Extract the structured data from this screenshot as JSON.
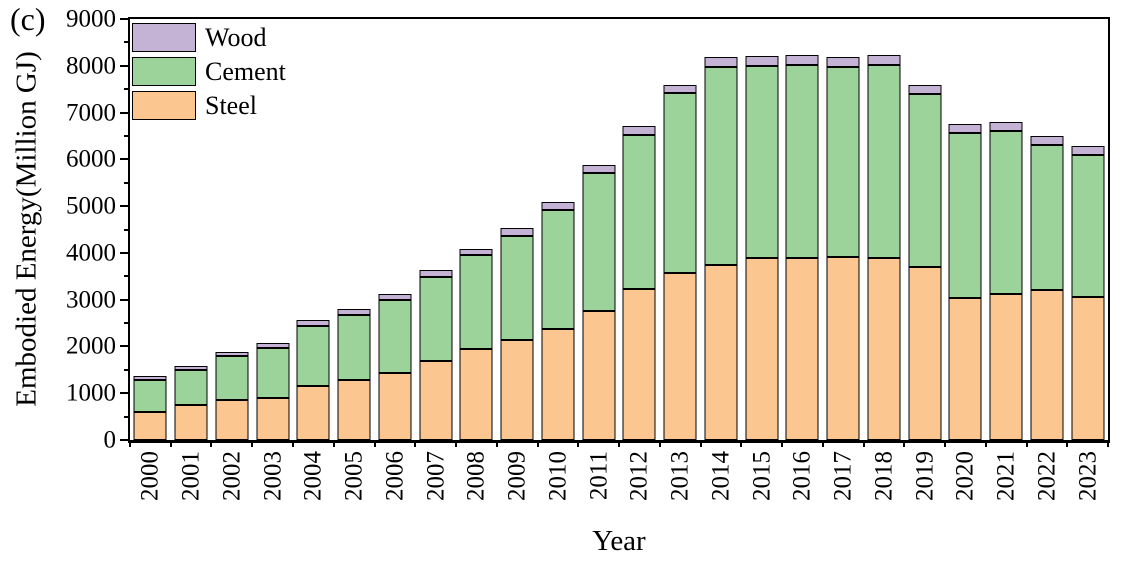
{
  "labels": {
    "panel": "(c)"
  },
  "legend": {
    "position": "top-left",
    "entries": [
      "Wood",
      "Cement",
      "Steel"
    ]
  },
  "colors": {
    "steel": "#FBC690",
    "cement": "#9CD39B",
    "wood": "#C4B3D4",
    "outline": "#000000"
  },
  "chart_data": {
    "type": "bar",
    "stacked": true,
    "title": "",
    "xlabel": "Year",
    "ylabel": "Embodied Energy(Million GJ)",
    "ylim": [
      0,
      9000
    ],
    "y_major_ticks": [
      0,
      1000,
      2000,
      3000,
      4000,
      5000,
      6000,
      7000,
      8000,
      9000
    ],
    "y_minor_tick_interval": 500,
    "grid": false,
    "legend_position": "top-left",
    "categories": [
      "2000",
      "2001",
      "2002",
      "2003",
      "2004",
      "2005",
      "2006",
      "2007",
      "2008",
      "2009",
      "2010",
      "2011",
      "2012",
      "2013",
      "2014",
      "2015",
      "2016",
      "2017",
      "2018",
      "2019",
      "2020",
      "2021",
      "2022",
      "2023"
    ],
    "series": [
      {
        "name": "Steel",
        "color": "#FBC690",
        "values": [
          600,
          740,
          850,
          890,
          1150,
          1290,
          1440,
          1685,
          1950,
          2145,
          2370,
          2750,
          3220,
          3560,
          3740,
          3900,
          3900,
          3910,
          3900,
          3690,
          3040,
          3125,
          3210,
          3065
        ]
      },
      {
        "name": "Cement",
        "color": "#9CD39B",
        "values": [
          680,
          760,
          945,
          1080,
          1295,
          1380,
          1550,
          1800,
          2000,
          2225,
          2550,
          2960,
          3300,
          3850,
          4235,
          4095,
          4110,
          4070,
          4125,
          3700,
          3525,
          3475,
          3100,
          3020
        ]
      },
      {
        "name": "Wood",
        "color": "#C4B3D4",
        "values": [
          85,
          75,
          90,
          110,
          125,
          130,
          130,
          140,
          140,
          160,
          175,
          165,
          200,
          170,
          210,
          210,
          215,
          210,
          200,
          210,
          190,
          200,
          180,
          190
        ]
      }
    ]
  }
}
